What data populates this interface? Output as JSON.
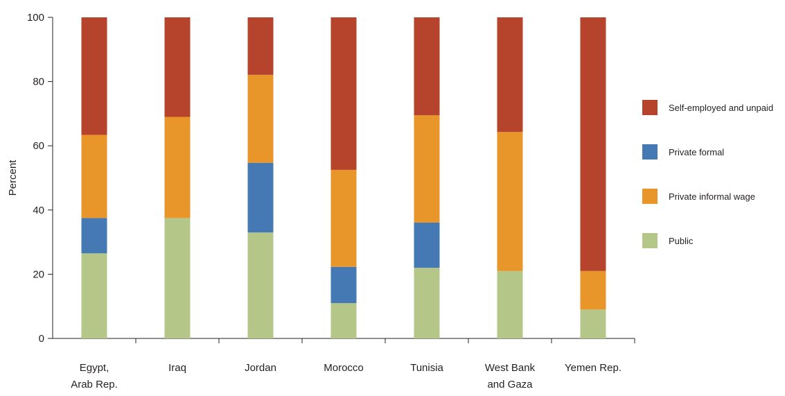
{
  "chart_data": {
    "type": "bar",
    "stacked": true,
    "ylabel": "Percent",
    "ylim": [
      0,
      100
    ],
    "yticks": [
      0,
      20,
      40,
      60,
      80,
      100
    ],
    "grid": false,
    "legend_position": "right",
    "categories": [
      [
        "Egypt,",
        "Arab Rep."
      ],
      [
        "Iraq"
      ],
      [
        "Jordan"
      ],
      [
        "Morocco"
      ],
      [
        "Tunisia"
      ],
      [
        "West Bank",
        "and Gaza"
      ],
      [
        "Yemen Rep."
      ]
    ],
    "series": [
      {
        "name": "Public",
        "color": "#b5c689",
        "values": [
          26.5,
          37.5,
          33,
          11,
          22,
          21,
          9
        ]
      },
      {
        "name": "Private formal",
        "color": "#4479b4",
        "values": [
          11,
          0,
          21.7,
          11.3,
          14.1,
          0,
          0
        ]
      },
      {
        "name": "Private informal wage",
        "color": "#e8952a",
        "values": [
          25.9,
          31.5,
          27.4,
          30.2,
          33.4,
          43.3,
          12
        ]
      },
      {
        "name": "Self-employed and unpaid",
        "color": "#b6432c",
        "values": [
          36.6,
          31,
          17.9,
          47.5,
          30.5,
          35.7,
          79
        ]
      }
    ],
    "legend_order": [
      "Self-employed and unpaid",
      "Private formal",
      "Private informal wage",
      "Public"
    ]
  }
}
